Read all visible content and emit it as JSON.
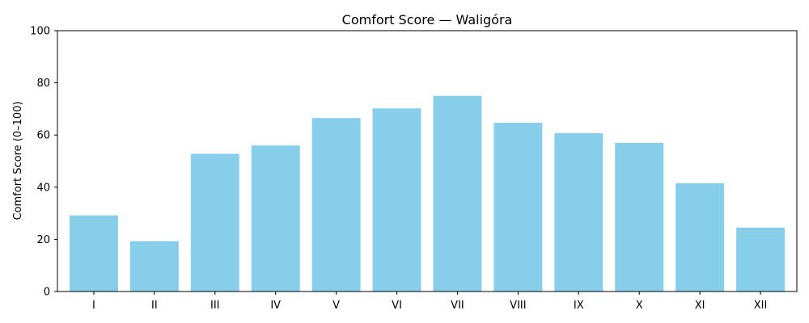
{
  "chart_data": {
    "type": "bar",
    "title": "Comfort Score — Waligóra",
    "xlabel": "",
    "ylabel": "Comfort Score (0–100)",
    "categories": [
      "I",
      "II",
      "III",
      "IV",
      "V",
      "VI",
      "VII",
      "VIII",
      "IX",
      "X",
      "XI",
      "XII"
    ],
    "values": [
      29.2,
      19.3,
      52.8,
      56.0,
      66.5,
      70.2,
      75.0,
      64.7,
      60.7,
      57.0,
      41.5,
      24.5
    ],
    "ylim": [
      0,
      100
    ],
    "yticks": [
      0,
      20,
      40,
      60,
      80,
      100
    ],
    "grid": false,
    "bar_color": "#87ceeb"
  }
}
